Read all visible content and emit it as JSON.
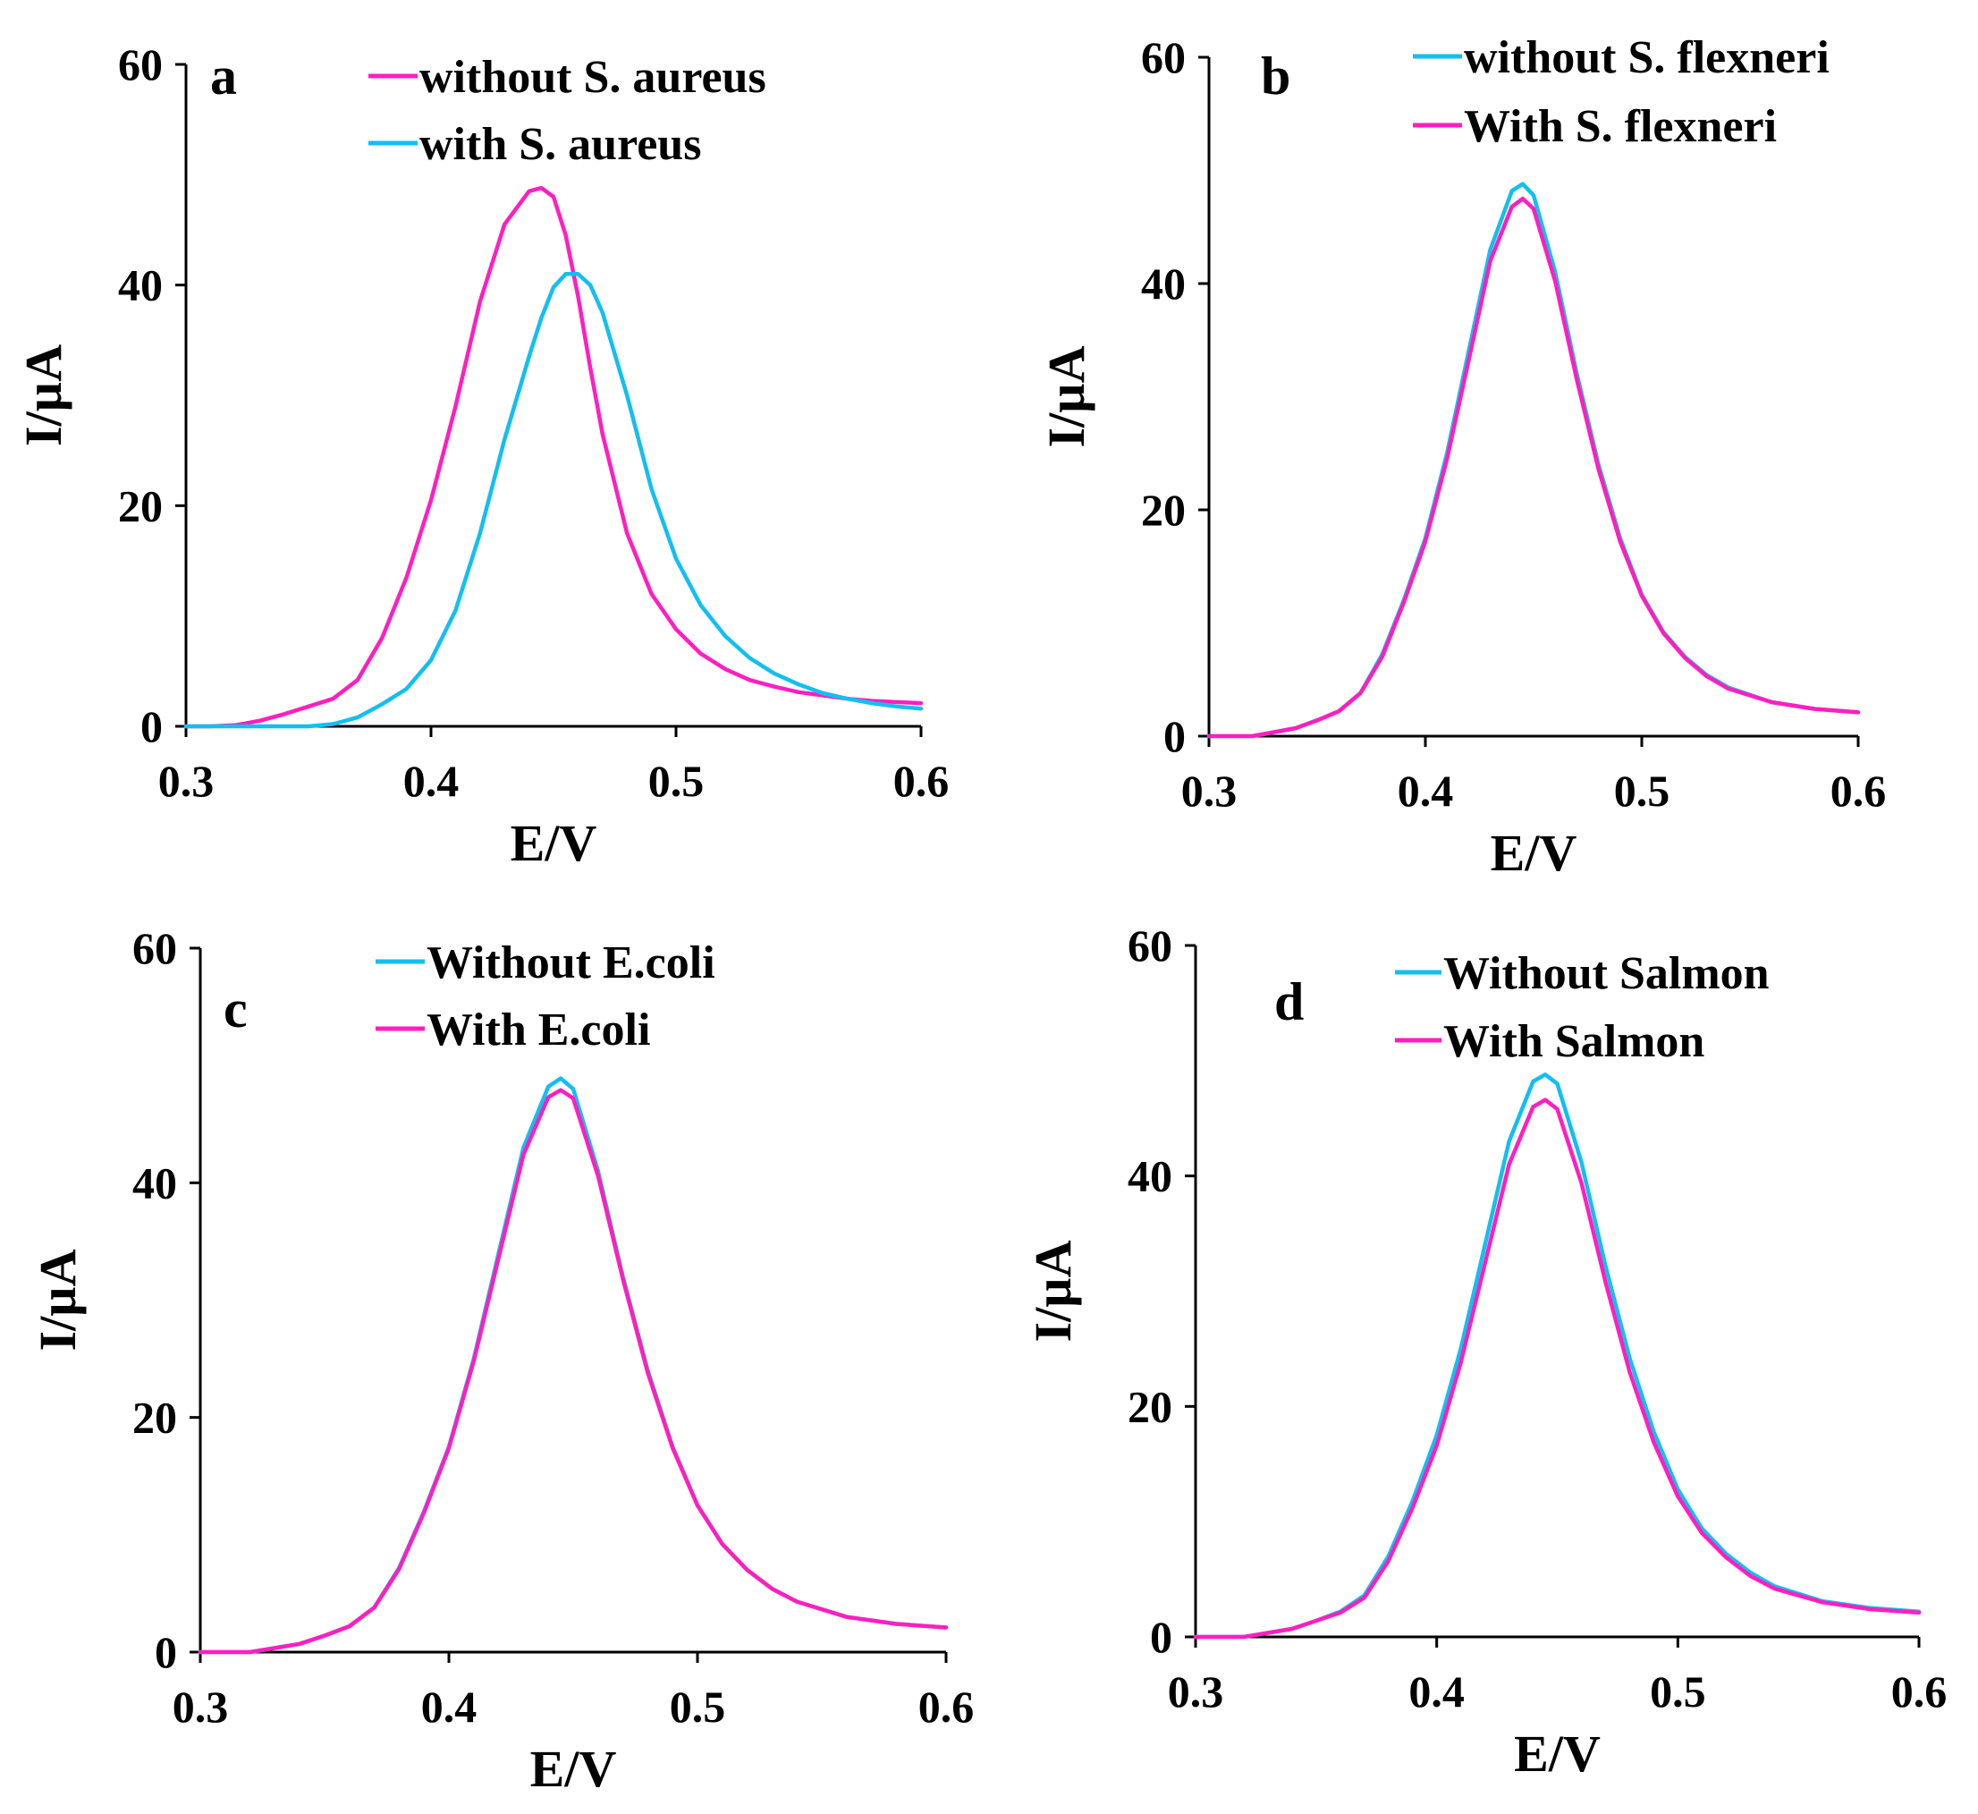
{
  "colors": {
    "pink": "#ff1fbf",
    "cyan": "#12bff0"
  },
  "chart_data": [
    {
      "type": "line",
      "panel_label": "a",
      "xlabel": "E/V",
      "ylabel": "I/µA",
      "xlim": [
        0.3,
        0.6
      ],
      "ylim": [
        0,
        60
      ],
      "xticks": [
        "0.3",
        "0.4",
        "0.5",
        "0.6"
      ],
      "yticks": [
        "0",
        "20",
        "40",
        "60"
      ],
      "x": [
        0.3,
        0.31,
        0.32,
        0.33,
        0.34,
        0.35,
        0.36,
        0.37,
        0.38,
        0.39,
        0.4,
        0.41,
        0.42,
        0.43,
        0.44,
        0.445,
        0.45,
        0.455,
        0.46,
        0.465,
        0.47,
        0.48,
        0.49,
        0.5,
        0.51,
        0.52,
        0.53,
        0.54,
        0.55,
        0.56,
        0.57,
        0.58,
        0.59,
        0.6
      ],
      "series": [
        {
          "name": "without S. aureus",
          "color": "#ff1fbf",
          "values": [
            0.0,
            0.0,
            0.1,
            0.5,
            1.1,
            1.8,
            2.5,
            4.2,
            8.0,
            13.5,
            20.5,
            29.0,
            38.5,
            45.5,
            48.5,
            48.8,
            48.0,
            44.5,
            39.0,
            32.5,
            26.5,
            17.5,
            12.0,
            8.8,
            6.6,
            5.2,
            4.2,
            3.6,
            3.1,
            2.8,
            2.5,
            2.3,
            2.2,
            2.1
          ]
        },
        {
          "name": "with S. aureus",
          "color": "#12bff0",
          "values": [
            0.0,
            0.0,
            0.0,
            0.0,
            0.0,
            0.0,
            0.2,
            0.8,
            2.0,
            3.4,
            6.0,
            10.5,
            17.5,
            26.0,
            33.5,
            37.0,
            39.8,
            41.0,
            41.0,
            40.0,
            37.5,
            30.0,
            21.5,
            15.2,
            11.0,
            8.2,
            6.2,
            4.8,
            3.8,
            3.0,
            2.5,
            2.1,
            1.8,
            1.6
          ]
        }
      ]
    },
    {
      "type": "line",
      "panel_label": "b",
      "xlabel": "E/V",
      "ylabel": "I/µA",
      "xlim": [
        0.3,
        0.6
      ],
      "ylim": [
        0,
        60
      ],
      "xticks": [
        "0.3",
        "0.4",
        "0.5",
        "0.6"
      ],
      "yticks": [
        "0",
        "20",
        "40",
        "60"
      ],
      "x": [
        0.3,
        0.32,
        0.34,
        0.35,
        0.36,
        0.37,
        0.38,
        0.39,
        0.4,
        0.41,
        0.42,
        0.43,
        0.44,
        0.445,
        0.45,
        0.46,
        0.47,
        0.48,
        0.49,
        0.5,
        0.51,
        0.52,
        0.53,
        0.54,
        0.56,
        0.58,
        0.6
      ],
      "series": [
        {
          "name": "without S. flexneri",
          "color": "#12bff0",
          "values": [
            0.0,
            0.0,
            0.7,
            1.4,
            2.2,
            3.8,
            7.2,
            12.0,
            17.5,
            25.0,
            34.0,
            43.0,
            48.2,
            48.8,
            47.8,
            41.0,
            32.0,
            24.0,
            17.5,
            12.5,
            9.2,
            7.0,
            5.4,
            4.3,
            3.0,
            2.4,
            2.1
          ]
        },
        {
          "name": "With S. flexneri",
          "color": "#ff1fbf",
          "values": [
            0.0,
            0.0,
            0.7,
            1.4,
            2.2,
            3.8,
            7.0,
            11.8,
            17.2,
            24.5,
            33.2,
            42.0,
            46.8,
            47.5,
            46.6,
            40.2,
            31.5,
            23.6,
            17.2,
            12.4,
            9.1,
            6.9,
            5.3,
            4.2,
            3.0,
            2.4,
            2.1
          ]
        }
      ]
    },
    {
      "type": "line",
      "panel_label": "c",
      "xlabel": "E/V",
      "ylabel": "I/µA",
      "xlim": [
        0.3,
        0.6
      ],
      "ylim": [
        0,
        60
      ],
      "xticks": [
        "0.3",
        "0.4",
        "0.5",
        "0.6"
      ],
      "yticks": [
        "0",
        "20",
        "40",
        "60"
      ],
      "x": [
        0.3,
        0.32,
        0.34,
        0.35,
        0.36,
        0.37,
        0.38,
        0.39,
        0.4,
        0.41,
        0.42,
        0.43,
        0.44,
        0.445,
        0.45,
        0.46,
        0.47,
        0.48,
        0.49,
        0.5,
        0.51,
        0.52,
        0.53,
        0.54,
        0.56,
        0.58,
        0.6
      ],
      "series": [
        {
          "name": "Without E.coli",
          "color": "#12bff0",
          "values": [
            0.0,
            0.0,
            0.7,
            1.4,
            2.2,
            3.8,
            7.2,
            12.0,
            17.5,
            25.0,
            34.0,
            43.0,
            48.2,
            48.9,
            48.0,
            41.0,
            32.0,
            24.0,
            17.5,
            12.5,
            9.2,
            7.0,
            5.4,
            4.3,
            3.0,
            2.4,
            2.1
          ]
        },
        {
          "name": "With E.coli",
          "color": "#ff1fbf",
          "values": [
            0.0,
            0.0,
            0.7,
            1.4,
            2.2,
            3.8,
            7.1,
            11.9,
            17.4,
            24.8,
            33.6,
            42.4,
            47.3,
            47.9,
            47.2,
            40.6,
            31.8,
            23.8,
            17.4,
            12.5,
            9.2,
            7.0,
            5.4,
            4.3,
            3.0,
            2.4,
            2.1
          ]
        }
      ]
    },
    {
      "type": "line",
      "panel_label": "d",
      "xlabel": "E/V",
      "ylabel": "I/µA",
      "xlim": [
        0.3,
        0.6
      ],
      "ylim": [
        0,
        60
      ],
      "xticks": [
        "0.3",
        "0.4",
        "0.5",
        "0.6"
      ],
      "yticks": [
        "0",
        "20",
        "40",
        "60"
      ],
      "x": [
        0.3,
        0.32,
        0.34,
        0.35,
        0.36,
        0.37,
        0.38,
        0.39,
        0.4,
        0.41,
        0.42,
        0.43,
        0.44,
        0.445,
        0.45,
        0.46,
        0.47,
        0.48,
        0.49,
        0.5,
        0.51,
        0.52,
        0.53,
        0.54,
        0.56,
        0.58,
        0.6
      ],
      "series": [
        {
          "name": "Without Salmon",
          "color": "#12bff0",
          "values": [
            0.0,
            0.0,
            0.7,
            1.4,
            2.2,
            3.6,
            7.0,
            11.8,
            17.5,
            25.0,
            34.0,
            43.0,
            48.2,
            48.8,
            48.0,
            41.2,
            32.2,
            24.2,
            17.8,
            12.8,
            9.4,
            7.2,
            5.6,
            4.4,
            3.1,
            2.5,
            2.2
          ]
        },
        {
          "name": "With Salmon",
          "color": "#ff1fbf",
          "values": [
            0.0,
            0.0,
            0.7,
            1.4,
            2.1,
            3.4,
            6.6,
            11.2,
            16.6,
            23.8,
            32.4,
            41.0,
            46.0,
            46.6,
            45.8,
            39.4,
            30.8,
            23.0,
            16.9,
            12.2,
            9.0,
            6.9,
            5.3,
            4.2,
            3.0,
            2.4,
            2.1
          ]
        }
      ]
    }
  ]
}
